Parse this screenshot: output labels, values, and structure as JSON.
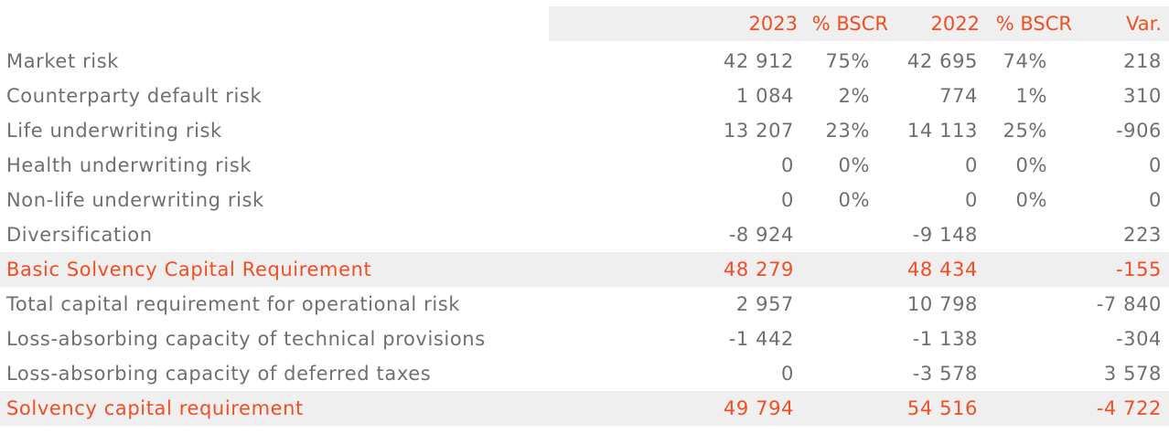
{
  "header": {
    "y2023": "2023",
    "pct2023": "% BSCR",
    "y2022": "2022",
    "pct2022": "% BSCR",
    "var": "Var."
  },
  "rows": [
    {
      "label": "Market risk",
      "v2023": "42 912",
      "p2023": "75%",
      "v2022": "42 695",
      "p2022": "74%",
      "var": "218",
      "highlight": false
    },
    {
      "label": "Counterparty default risk",
      "v2023": "1 084",
      "p2023": "2%",
      "v2022": "774",
      "p2022": "1%",
      "var": "310",
      "highlight": false
    },
    {
      "label": "Life underwriting risk",
      "v2023": "13 207",
      "p2023": "23%",
      "v2022": "14 113",
      "p2022": "25%",
      "var": "-906",
      "highlight": false
    },
    {
      "label": "Health underwriting risk",
      "v2023": "0",
      "p2023": "0%",
      "v2022": "0",
      "p2022": "0%",
      "var": "0",
      "highlight": false
    },
    {
      "label": "Non-life underwriting risk",
      "v2023": "0",
      "p2023": "0%",
      "v2022": "0",
      "p2022": "0%",
      "var": "0",
      "highlight": false
    },
    {
      "label": "Diversification",
      "v2023": "-8 924",
      "p2023": "",
      "v2022": "-9 148",
      "p2022": "",
      "var": "223",
      "highlight": false
    },
    {
      "label": "Basic Solvency Capital Requirement",
      "v2023": "48 279",
      "p2023": "",
      "v2022": "48 434",
      "p2022": "",
      "var": "-155",
      "highlight": true
    },
    {
      "label": "Total capital requirement for operational risk",
      "v2023": "2 957",
      "p2023": "",
      "v2022": "10 798",
      "p2022": "",
      "var": "-7 840",
      "highlight": false
    },
    {
      "label": "Loss-absorbing capacity of technical provisions",
      "v2023": "-1 442",
      "p2023": "",
      "v2022": "-1 138",
      "p2022": "",
      "var": "-304",
      "highlight": false
    },
    {
      "label": "Loss-absorbing capacity of deferred taxes",
      "v2023": "0",
      "p2023": "",
      "v2022": "-3 578",
      "p2022": "",
      "var": "3 578",
      "highlight": false
    },
    {
      "label": "Solvency capital requirement",
      "v2023": "49 794",
      "p2023": "",
      "v2022": "54 516",
      "p2022": "",
      "var": "-4 722",
      "highlight": true
    }
  ],
  "colors": {
    "accent": "#f04e23",
    "text": "#6f6f6f",
    "band": "#efefef"
  }
}
